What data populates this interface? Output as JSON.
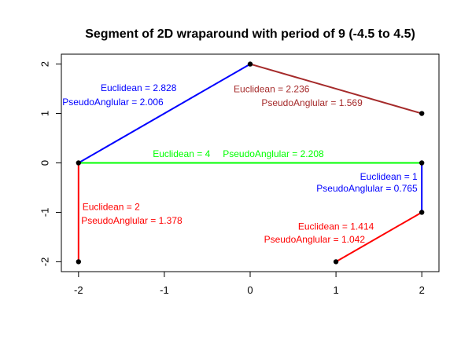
{
  "chart_data": {
    "type": "line",
    "title": "Segment of 2D wraparound with period of 9 (-4.5 to 4.5)",
    "xlabel": "",
    "ylabel": "",
    "xlim": [
      -2.2,
      2.2
    ],
    "ylim": [
      -2.2,
      2.2
    ],
    "x_ticks": [
      -2,
      -1,
      0,
      1,
      2
    ],
    "y_ticks": [
      -2,
      -1,
      0,
      1,
      2
    ],
    "x_tick_labels": [
      "-2",
      "-1",
      "0",
      "1",
      "2"
    ],
    "y_tick_labels": [
      "-2",
      "-1",
      "0",
      "1",
      "2"
    ],
    "points": [
      {
        "x": -2,
        "y": 0
      },
      {
        "x": 0,
        "y": 2
      },
      {
        "x": 2,
        "y": 1
      },
      {
        "x": 2,
        "y": 0
      },
      {
        "x": 2,
        "y": -1
      },
      {
        "x": 1,
        "y": -2
      },
      {
        "x": -2,
        "y": -2
      }
    ],
    "segments": [
      {
        "from": [
          -2,
          0
        ],
        "to": [
          0,
          2
        ],
        "color": "#0000ff"
      },
      {
        "from": [
          0,
          2
        ],
        "to": [
          2,
          1
        ],
        "color": "#a52a2a"
      },
      {
        "from": [
          -2,
          0
        ],
        "to": [
          2,
          0
        ],
        "color": "#00ff00"
      },
      {
        "from": [
          2,
          0
        ],
        "to": [
          2,
          -1
        ],
        "color": "#0000ff"
      },
      {
        "from": [
          2,
          -1
        ],
        "to": [
          1,
          -2
        ],
        "color": "#ff0000"
      },
      {
        "from": [
          -2,
          0
        ],
        "to": [
          -2,
          -2
        ],
        "color": "#ff0000"
      }
    ],
    "annotations": [
      {
        "text": "Euclidean = 2.828",
        "x": -1.3,
        "y": 1.5,
        "anchor": "middle",
        "color": "#0000ff"
      },
      {
        "text": "PseudoAnglular = 2.006",
        "x": -1.6,
        "y": 1.22,
        "anchor": "middle",
        "color": "#0000ff"
      },
      {
        "text": "Euclidean = 2.236",
        "x": 0.25,
        "y": 1.48,
        "anchor": "middle",
        "color": "#a52a2a"
      },
      {
        "text": "PseudoAnglular = 1.569",
        "x": 0.72,
        "y": 1.2,
        "anchor": "middle",
        "color": "#a52a2a"
      },
      {
        "text": "Euclidean = 4",
        "x": -0.8,
        "y": 0.17,
        "anchor": "middle",
        "color": "#00ff00"
      },
      {
        "text": "PseudoAnglular = 2.208",
        "x": 0.27,
        "y": 0.17,
        "anchor": "middle",
        "color": "#00ff00"
      },
      {
        "text": "Euclidean = 1",
        "x": 1.95,
        "y": -0.29,
        "anchor": "end",
        "color": "#0000ff"
      },
      {
        "text": "PseudoAnglular = 0.765",
        "x": 1.95,
        "y": -0.53,
        "anchor": "end",
        "color": "#0000ff"
      },
      {
        "text": "Euclidean = 2",
        "x": -1.62,
        "y": -0.9,
        "anchor": "middle",
        "color": "#ff0000"
      },
      {
        "text": "PseudoAnglular = 1.378",
        "x": -1.38,
        "y": -1.18,
        "anchor": "middle",
        "color": "#ff0000"
      },
      {
        "text": "Euclidean = 1.414",
        "x": 1.0,
        "y": -1.3,
        "anchor": "middle",
        "color": "#ff0000"
      },
      {
        "text": "PseudoAnglular = 1.042",
        "x": 0.75,
        "y": -1.56,
        "anchor": "middle",
        "color": "#ff0000"
      }
    ]
  }
}
